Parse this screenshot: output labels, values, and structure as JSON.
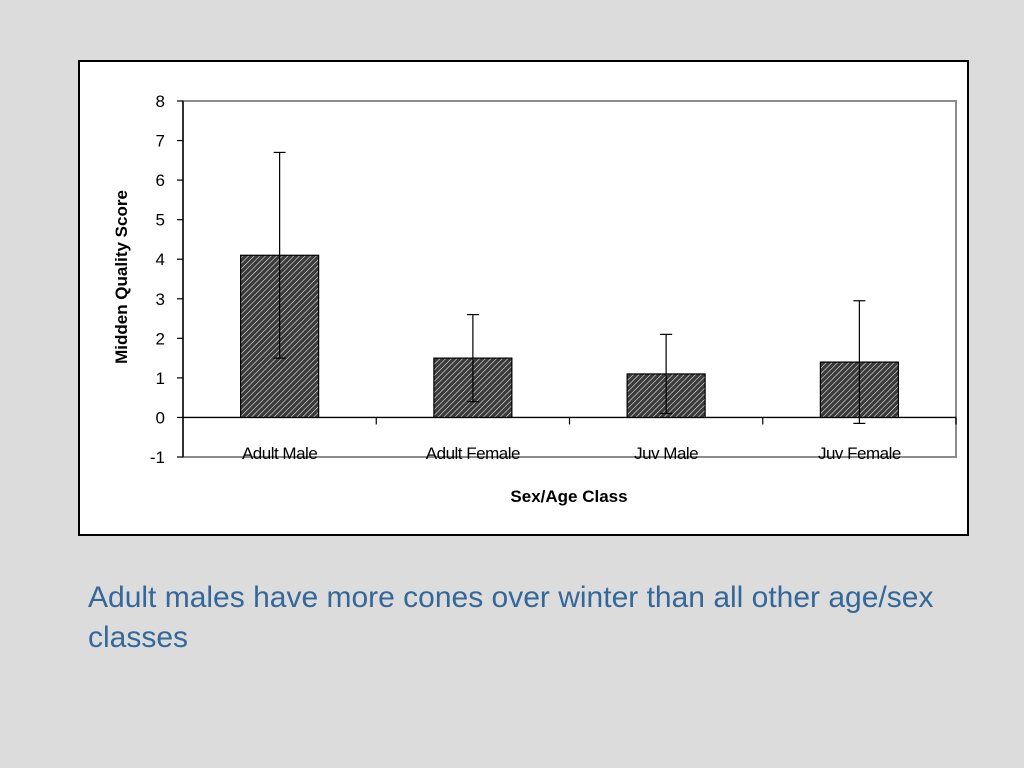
{
  "caption": "Adult males have more cones over winter than all other age/sex classes",
  "colors": {
    "background": "#dcdcdc",
    "caption": "#34679a",
    "bar_fill": "#3a3a3a",
    "frame": "#000000"
  },
  "chart_data": {
    "type": "bar",
    "title": "",
    "xlabel": "Sex/Age Class",
    "ylabel": "Midden Quality Score",
    "categories": [
      "Adult Male",
      "Adult Female",
      "Juv Male",
      "Juv Female"
    ],
    "values": [
      4.1,
      1.5,
      1.1,
      1.4
    ],
    "error_bars": [
      2.6,
      1.1,
      1.0,
      1.55
    ],
    "ylim": [
      -1,
      8
    ],
    "yticks": [
      "-1",
      "0",
      "1",
      "2",
      "3",
      "4",
      "5",
      "6",
      "7",
      "8"
    ],
    "bar_pattern": "crosshatch",
    "grid": false,
    "legend": "none"
  }
}
